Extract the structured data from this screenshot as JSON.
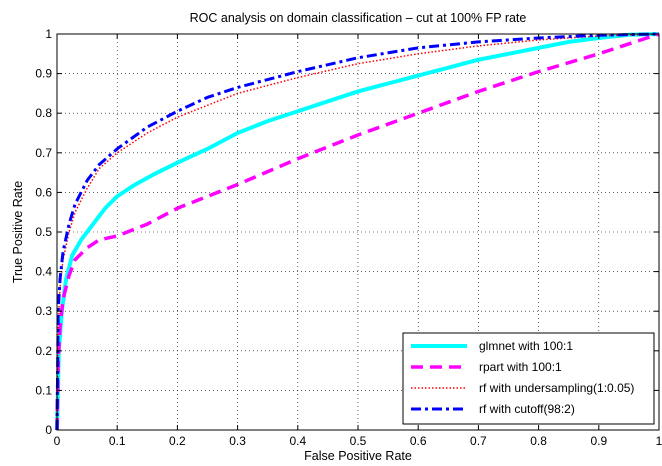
{
  "chart_data": {
    "type": "line",
    "title": "ROC analysis on domain classification – cut at 100% FP rate",
    "xlabel": "False Positive Rate",
    "ylabel": "True Positive Rate",
    "xlim": [
      0,
      1
    ],
    "ylim": [
      0,
      1
    ],
    "x_ticks": [
      0,
      0.1,
      0.2,
      0.3,
      0.4,
      0.5,
      0.6,
      0.7,
      0.8,
      0.9,
      1
    ],
    "x_tick_labels": [
      "0",
      "0.1",
      "0.2",
      "0.3",
      "0.4",
      "0.5",
      "0.6",
      "0.7",
      "0.8",
      "0.9",
      "1"
    ],
    "y_ticks": [
      0,
      0.1,
      0.2,
      0.3,
      0.4,
      0.5,
      0.6,
      0.7,
      0.8,
      0.9,
      1
    ],
    "y_tick_labels": [
      "0",
      "0.1",
      "0.2",
      "0.3",
      "0.4",
      "0.5",
      "0.6",
      "0.7",
      "0.8",
      "0.9",
      "1"
    ],
    "grid": true,
    "legend_position": "bottom-right",
    "series": [
      {
        "name": "glmnet with 100:1",
        "color": "#00ffff",
        "style": "solid",
        "x": [
          0,
          0.003,
          0.008,
          0.015,
          0.025,
          0.04,
          0.06,
          0.08,
          0.1,
          0.13,
          0.16,
          0.2,
          0.25,
          0.3,
          0.35,
          0.4,
          0.45,
          0.5,
          0.55,
          0.6,
          0.65,
          0.7,
          0.75,
          0.8,
          0.85,
          0.9,
          0.95,
          1
        ],
        "y": [
          0,
          0.2,
          0.3,
          0.38,
          0.44,
          0.48,
          0.52,
          0.56,
          0.59,
          0.62,
          0.645,
          0.675,
          0.71,
          0.75,
          0.78,
          0.805,
          0.83,
          0.855,
          0.875,
          0.895,
          0.915,
          0.935,
          0.95,
          0.965,
          0.98,
          0.99,
          0.998,
          1
        ]
      },
      {
        "name": "rpart with 100:1",
        "color": "#ff00ff",
        "style": "dashed",
        "x": [
          0,
          0.002,
          0.005,
          0.01,
          0.02,
          0.03,
          0.05,
          0.07,
          0.1,
          0.15,
          0.2,
          0.3,
          0.4,
          0.5,
          0.6,
          0.7,
          0.8,
          0.9,
          1
        ],
        "y": [
          0,
          0.17,
          0.26,
          0.33,
          0.39,
          0.43,
          0.46,
          0.48,
          0.49,
          0.52,
          0.56,
          0.62,
          0.685,
          0.745,
          0.8,
          0.855,
          0.905,
          0.95,
          1
        ]
      },
      {
        "name": "rf with undersampling(1:0.05)",
        "color": "#ff0000",
        "style": "dotted",
        "x": [
          0,
          0.002,
          0.005,
          0.01,
          0.02,
          0.03,
          0.05,
          0.07,
          0.1,
          0.15,
          0.2,
          0.25,
          0.3,
          0.35,
          0.4,
          0.5,
          0.6,
          0.7,
          0.8,
          0.9,
          1
        ],
        "y": [
          0,
          0.27,
          0.36,
          0.43,
          0.5,
          0.55,
          0.61,
          0.66,
          0.7,
          0.75,
          0.79,
          0.82,
          0.85,
          0.87,
          0.89,
          0.925,
          0.95,
          0.97,
          0.985,
          0.995,
          1
        ]
      },
      {
        "name": "rf with cutoff(98:2)",
        "color": "#0000ff",
        "style": "dashdot",
        "x": [
          0,
          0.002,
          0.005,
          0.01,
          0.02,
          0.03,
          0.05,
          0.07,
          0.1,
          0.15,
          0.2,
          0.25,
          0.3,
          0.35,
          0.4,
          0.5,
          0.6,
          0.7,
          0.8,
          0.9,
          1
        ],
        "y": [
          0,
          0.3,
          0.38,
          0.45,
          0.52,
          0.57,
          0.63,
          0.67,
          0.71,
          0.765,
          0.805,
          0.84,
          0.865,
          0.885,
          0.905,
          0.94,
          0.965,
          0.98,
          0.99,
          0.997,
          1
        ]
      }
    ]
  }
}
